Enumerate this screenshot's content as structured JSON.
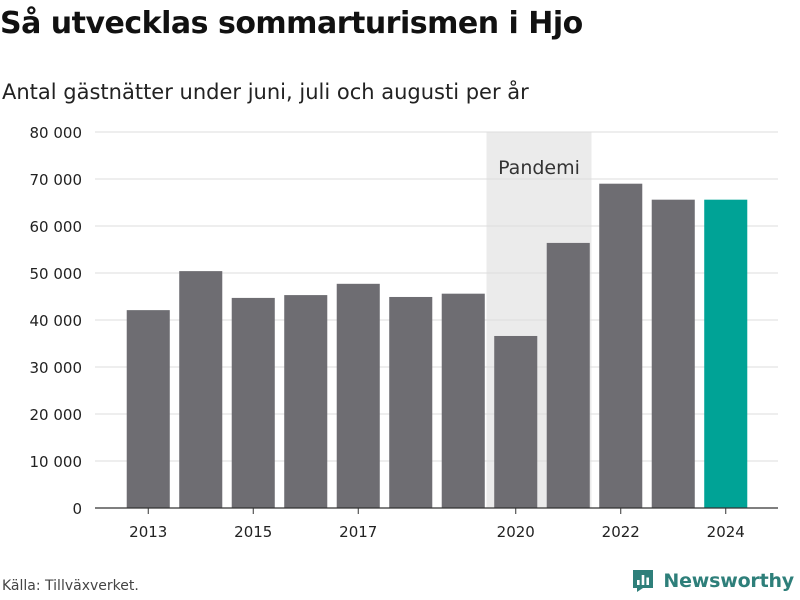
{
  "title": "Så utvecklas sommarturismen i Hjo",
  "subtitle": "Antal gästnätter under juni, juli och augusti per år",
  "source": "Källa: Tillväxverket.",
  "brand": {
    "name": "Newsworthy",
    "color": "#2e7f7a",
    "icon": "newsworthy-logo-icon"
  },
  "colors": {
    "bar": "#6e6d72",
    "highlight": "#00a396",
    "band": "#ebebeb",
    "grid": "#dddddd"
  },
  "chart_data": {
    "type": "bar",
    "x": [
      2013,
      2014,
      2015,
      2016,
      2017,
      2018,
      2019,
      2020,
      2021,
      2022,
      2023,
      2024
    ],
    "values": [
      42100,
      50400,
      44700,
      45300,
      47700,
      44900,
      45600,
      36600,
      56400,
      69000,
      65600,
      65600
    ],
    "highlight_year": 2024,
    "x_tick_labels": [
      "2013",
      "2015",
      "2017",
      "2020",
      "2022",
      "2024"
    ],
    "y_tick_labels": [
      "0",
      "10 000",
      "20 000",
      "30 000",
      "40 000",
      "50 000",
      "60 000",
      "70 000",
      "80 000"
    ],
    "ylim": [
      0,
      80000
    ],
    "grid": true,
    "annotation": {
      "label": "Pandemi",
      "from": 2020,
      "to": 2021
    }
  }
}
